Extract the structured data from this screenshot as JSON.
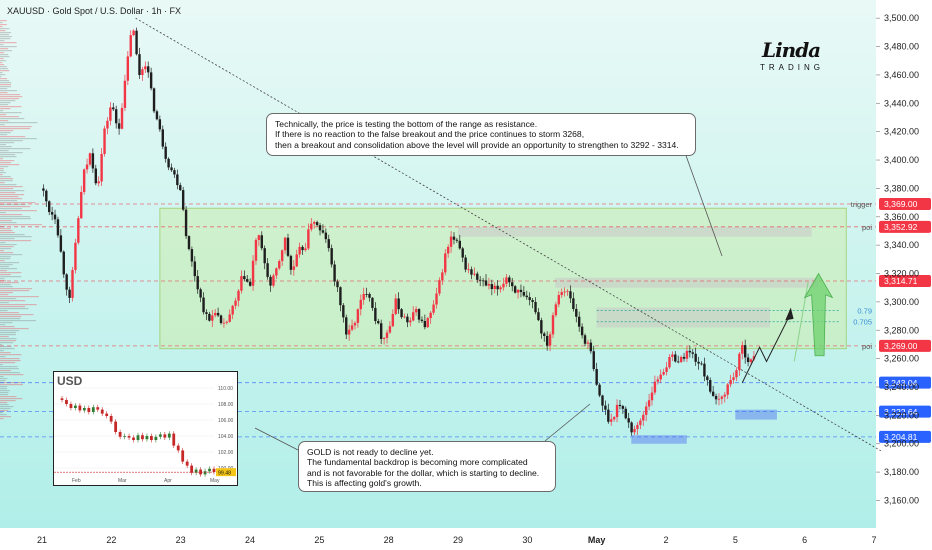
{
  "header": {
    "title": "XAUUSD · Gold Spot / U.S. Dollar · 1h · FX"
  },
  "logo": {
    "mark": "Linda",
    "sub": "TRADING"
  },
  "chart_data": {
    "type": "candlestick",
    "symbol": "XAUUSD",
    "timeframe": "1h",
    "ylim": [
      3142,
      3510
    ],
    "y_ticks": [
      3160,
      3180,
      3200,
      3220,
      3240,
      3260,
      3280,
      3300,
      3320,
      3340,
      3360,
      3380,
      3400,
      3420,
      3440,
      3460,
      3480,
      3500
    ],
    "x_ticks": [
      {
        "label": "21",
        "x": 0
      },
      {
        "label": "22",
        "x": 1
      },
      {
        "label": "23",
        "x": 2
      },
      {
        "label": "24",
        "x": 3
      },
      {
        "label": "25",
        "x": 4
      },
      {
        "label": "28",
        "x": 5
      },
      {
        "label": "29",
        "x": 6
      },
      {
        "label": "30",
        "x": 7
      },
      {
        "label": "May",
        "x": 8
      },
      {
        "label": "2",
        "x": 9
      },
      {
        "label": "5",
        "x": 10
      },
      {
        "label": "6",
        "x": 11
      },
      {
        "label": "7",
        "x": 12
      }
    ],
    "anchors": [
      [
        0.0,
        3380
      ],
      [
        0.1,
        3365
      ],
      [
        0.2,
        3360
      ],
      [
        0.3,
        3325
      ],
      [
        0.4,
        3300
      ],
      [
        0.5,
        3350
      ],
      [
        0.6,
        3390
      ],
      [
        0.7,
        3405
      ],
      [
        0.8,
        3380
      ],
      [
        0.9,
        3420
      ],
      [
        1.0,
        3440
      ],
      [
        1.1,
        3420
      ],
      [
        1.2,
        3455
      ],
      [
        1.3,
        3498
      ],
      [
        1.4,
        3460
      ],
      [
        1.5,
        3470
      ],
      [
        1.6,
        3440
      ],
      [
        1.7,
        3420
      ],
      [
        1.8,
        3400
      ],
      [
        1.9,
        3390
      ],
      [
        2.0,
        3380
      ],
      [
        2.1,
        3340
      ],
      [
        2.2,
        3320
      ],
      [
        2.3,
        3300
      ],
      [
        2.4,
        3285
      ],
      [
        2.5,
        3295
      ],
      [
        2.6,
        3280
      ],
      [
        2.7,
        3290
      ],
      [
        2.8,
        3300
      ],
      [
        2.9,
        3320
      ],
      [
        3.0,
        3310
      ],
      [
        3.1,
        3350
      ],
      [
        3.2,
        3330
      ],
      [
        3.3,
        3310
      ],
      [
        3.4,
        3325
      ],
      [
        3.5,
        3345
      ],
      [
        3.6,
        3320
      ],
      [
        3.7,
        3335
      ],
      [
        3.8,
        3340
      ],
      [
        3.9,
        3360
      ],
      [
        4.0,
        3350
      ],
      [
        4.1,
        3345
      ],
      [
        4.2,
        3320
      ],
      [
        4.3,
        3300
      ],
      [
        4.4,
        3275
      ],
      [
        4.5,
        3285
      ],
      [
        4.6,
        3300
      ],
      [
        4.7,
        3310
      ],
      [
        4.8,
        3290
      ],
      [
        4.9,
        3275
      ],
      [
        5.0,
        3280
      ],
      [
        5.1,
        3300
      ],
      [
        5.2,
        3290
      ],
      [
        5.3,
        3285
      ],
      [
        5.4,
        3295
      ],
      [
        5.5,
        3282
      ],
      [
        5.6,
        3290
      ],
      [
        5.7,
        3305
      ],
      [
        5.8,
        3330
      ],
      [
        5.9,
        3345
      ],
      [
        6.0,
        3340
      ],
      [
        6.1,
        3325
      ],
      [
        6.2,
        3320
      ],
      [
        6.3,
        3315
      ],
      [
        6.4,
        3312
      ],
      [
        6.5,
        3308
      ],
      [
        6.6,
        3310
      ],
      [
        6.7,
        3318
      ],
      [
        6.8,
        3310
      ],
      [
        6.9,
        3305
      ],
      [
        7.0,
        3300
      ],
      [
        7.1,
        3298
      ],
      [
        7.2,
        3280
      ],
      [
        7.3,
        3270
      ],
      [
        7.4,
        3300
      ],
      [
        7.5,
        3310
      ],
      [
        7.6,
        3305
      ],
      [
        7.7,
        3290
      ],
      [
        7.8,
        3275
      ],
      [
        7.9,
        3268
      ],
      [
        8.0,
        3240
      ],
      [
        8.1,
        3225
      ],
      [
        8.2,
        3215
      ],
      [
        8.3,
        3228
      ],
      [
        8.4,
        3222
      ],
      [
        8.5,
        3210
      ],
      [
        8.6,
        3212
      ],
      [
        8.7,
        3225
      ],
      [
        8.8,
        3238
      ],
      [
        8.9,
        3248
      ],
      [
        9.0,
        3255
      ],
      [
        9.1,
        3262
      ],
      [
        9.2,
        3258
      ],
      [
        9.3,
        3265
      ],
      [
        9.4,
        3262
      ],
      [
        9.5,
        3255
      ],
      [
        9.6,
        3245
      ],
      [
        9.7,
        3228
      ],
      [
        9.8,
        3232
      ],
      [
        9.9,
        3242
      ],
      [
        10.0,
        3250
      ],
      [
        10.1,
        3268
      ],
      [
        10.2,
        3258
      ],
      [
        10.3,
        3260
      ]
    ],
    "resistance_zone": {
      "x": [
        1.7,
        11.6
      ],
      "y": [
        3267,
        3366
      ]
    },
    "levels": [
      {
        "value": 3369.0,
        "label": "3,369.00",
        "side_label": "trigger",
        "color": "#f23645"
      },
      {
        "value": 3352.92,
        "label": "3,352.92",
        "side_label": "poi",
        "color": "#f23645"
      },
      {
        "value": 3314.71,
        "label": "3,314.71",
        "side_label": "",
        "color": "#f23645"
      },
      {
        "value": 3269.0,
        "label": "3,269.00",
        "side_label": "poi",
        "color": "#f23645"
      },
      {
        "value": 3243.04,
        "label": "3,243.04",
        "side_label": "",
        "color": "#2962ff"
      },
      {
        "value": 3222.64,
        "label": "3,222.64",
        "side_label": "",
        "color": "#2962ff"
      },
      {
        "value": 3204.81,
        "label": "3,204.81",
        "side_label": "",
        "color": "#2962ff"
      }
    ],
    "fib_levels": [
      {
        "value": 3294,
        "label": "0.79"
      },
      {
        "value": 3286,
        "label": "0.705"
      }
    ],
    "trendline": {
      "from": [
        1.35,
        3500
      ],
      "to": [
        12.1,
        3195
      ]
    },
    "supply_boxes": [
      {
        "x": [
          6.0,
          11.1
        ],
        "y": [
          3346,
          3353
        ]
      },
      {
        "x": [
          7.4,
          11.2
        ],
        "y": [
          3310,
          3317
        ]
      },
      {
        "x": [
          8.0,
          10.5
        ],
        "y": [
          3282,
          3296
        ]
      }
    ],
    "demand_boxes": [
      {
        "x": [
          8.5,
          9.3
        ],
        "y": [
          3200,
          3206
        ]
      },
      {
        "x": [
          10.0,
          10.6
        ],
        "y": [
          3217,
          3224
        ]
      }
    ]
  },
  "annotations": {
    "top": [
      "Technically, the price is testing the bottom of the range as resistance.",
      "If there is no reaction to the false breakout and the price continues to storm 3268,",
      "then a breakout and consolidation above the level will provide an opportunity to strengthen to 3292 - 3314."
    ],
    "bottom": [
      "GOLD is not ready to decline yet.",
      "The fundamental backdrop is becoming more complicated",
      "and is not favorable for the dollar, which is starting to decline.",
      "This is affecting gold's growth."
    ]
  },
  "inset": {
    "title": "USD",
    "y_ticks": [
      "110.00",
      "108.00",
      "106.00",
      "104.00",
      "102.00",
      "100.00"
    ],
    "x_ticks": [
      "Feb",
      "Mar",
      "Apr",
      "May"
    ],
    "last_value": "99.48"
  }
}
